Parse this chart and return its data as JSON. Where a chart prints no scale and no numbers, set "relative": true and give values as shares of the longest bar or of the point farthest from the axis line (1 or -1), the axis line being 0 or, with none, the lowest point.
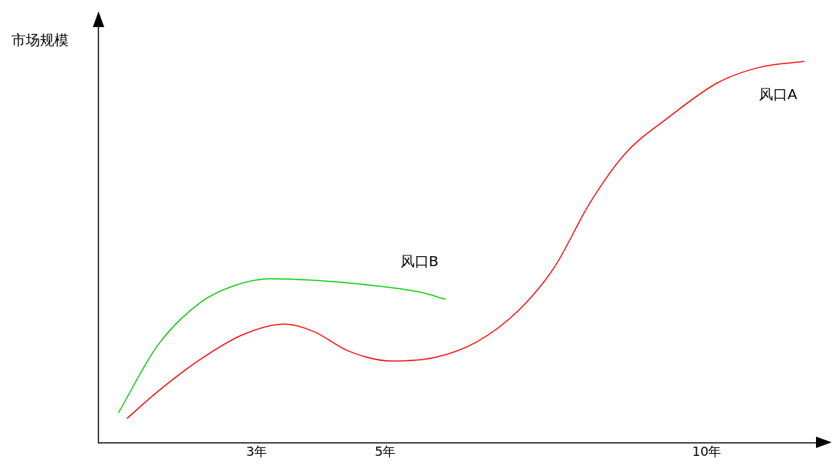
{
  "chart_data": {
    "type": "line",
    "ylabel": "市场规模",
    "relative": true,
    "xlim": [
      0.54,
      11.7
    ],
    "xticks": [
      {
        "value": 3,
        "label": "3年"
      },
      {
        "value": 5,
        "label": "5年"
      },
      {
        "value": 10,
        "label": "10年"
      }
    ],
    "grid": false,
    "legend": false,
    "marker": "none",
    "line_style": "solid",
    "series": [
      {
        "name": "风口A",
        "color": "#ff0000",
        "x": [
          0.98,
          1.46,
          2.12,
          2.78,
          3.44,
          3.88,
          4.43,
          5.09,
          5.76,
          6.42,
          7.08,
          7.63,
          8.18,
          8.73,
          9.39,
          10.17,
          10.83,
          11.52
        ],
        "values": [
          0.063,
          0.134,
          0.218,
          0.283,
          0.311,
          0.292,
          0.24,
          0.214,
          0.223,
          0.264,
          0.348,
          0.46,
          0.628,
          0.758,
          0.851,
          0.944,
          0.985,
          1.0
        ]
      },
      {
        "name": "风口B",
        "color": "#00cc00",
        "x": [
          0.85,
          1.46,
          2.12,
          2.67,
          3.22,
          3.88,
          4.76,
          5.53,
          5.94
        ],
        "values": [
          0.078,
          0.255,
          0.367,
          0.413,
          0.43,
          0.426,
          0.413,
          0.395,
          0.376
        ]
      }
    ]
  }
}
